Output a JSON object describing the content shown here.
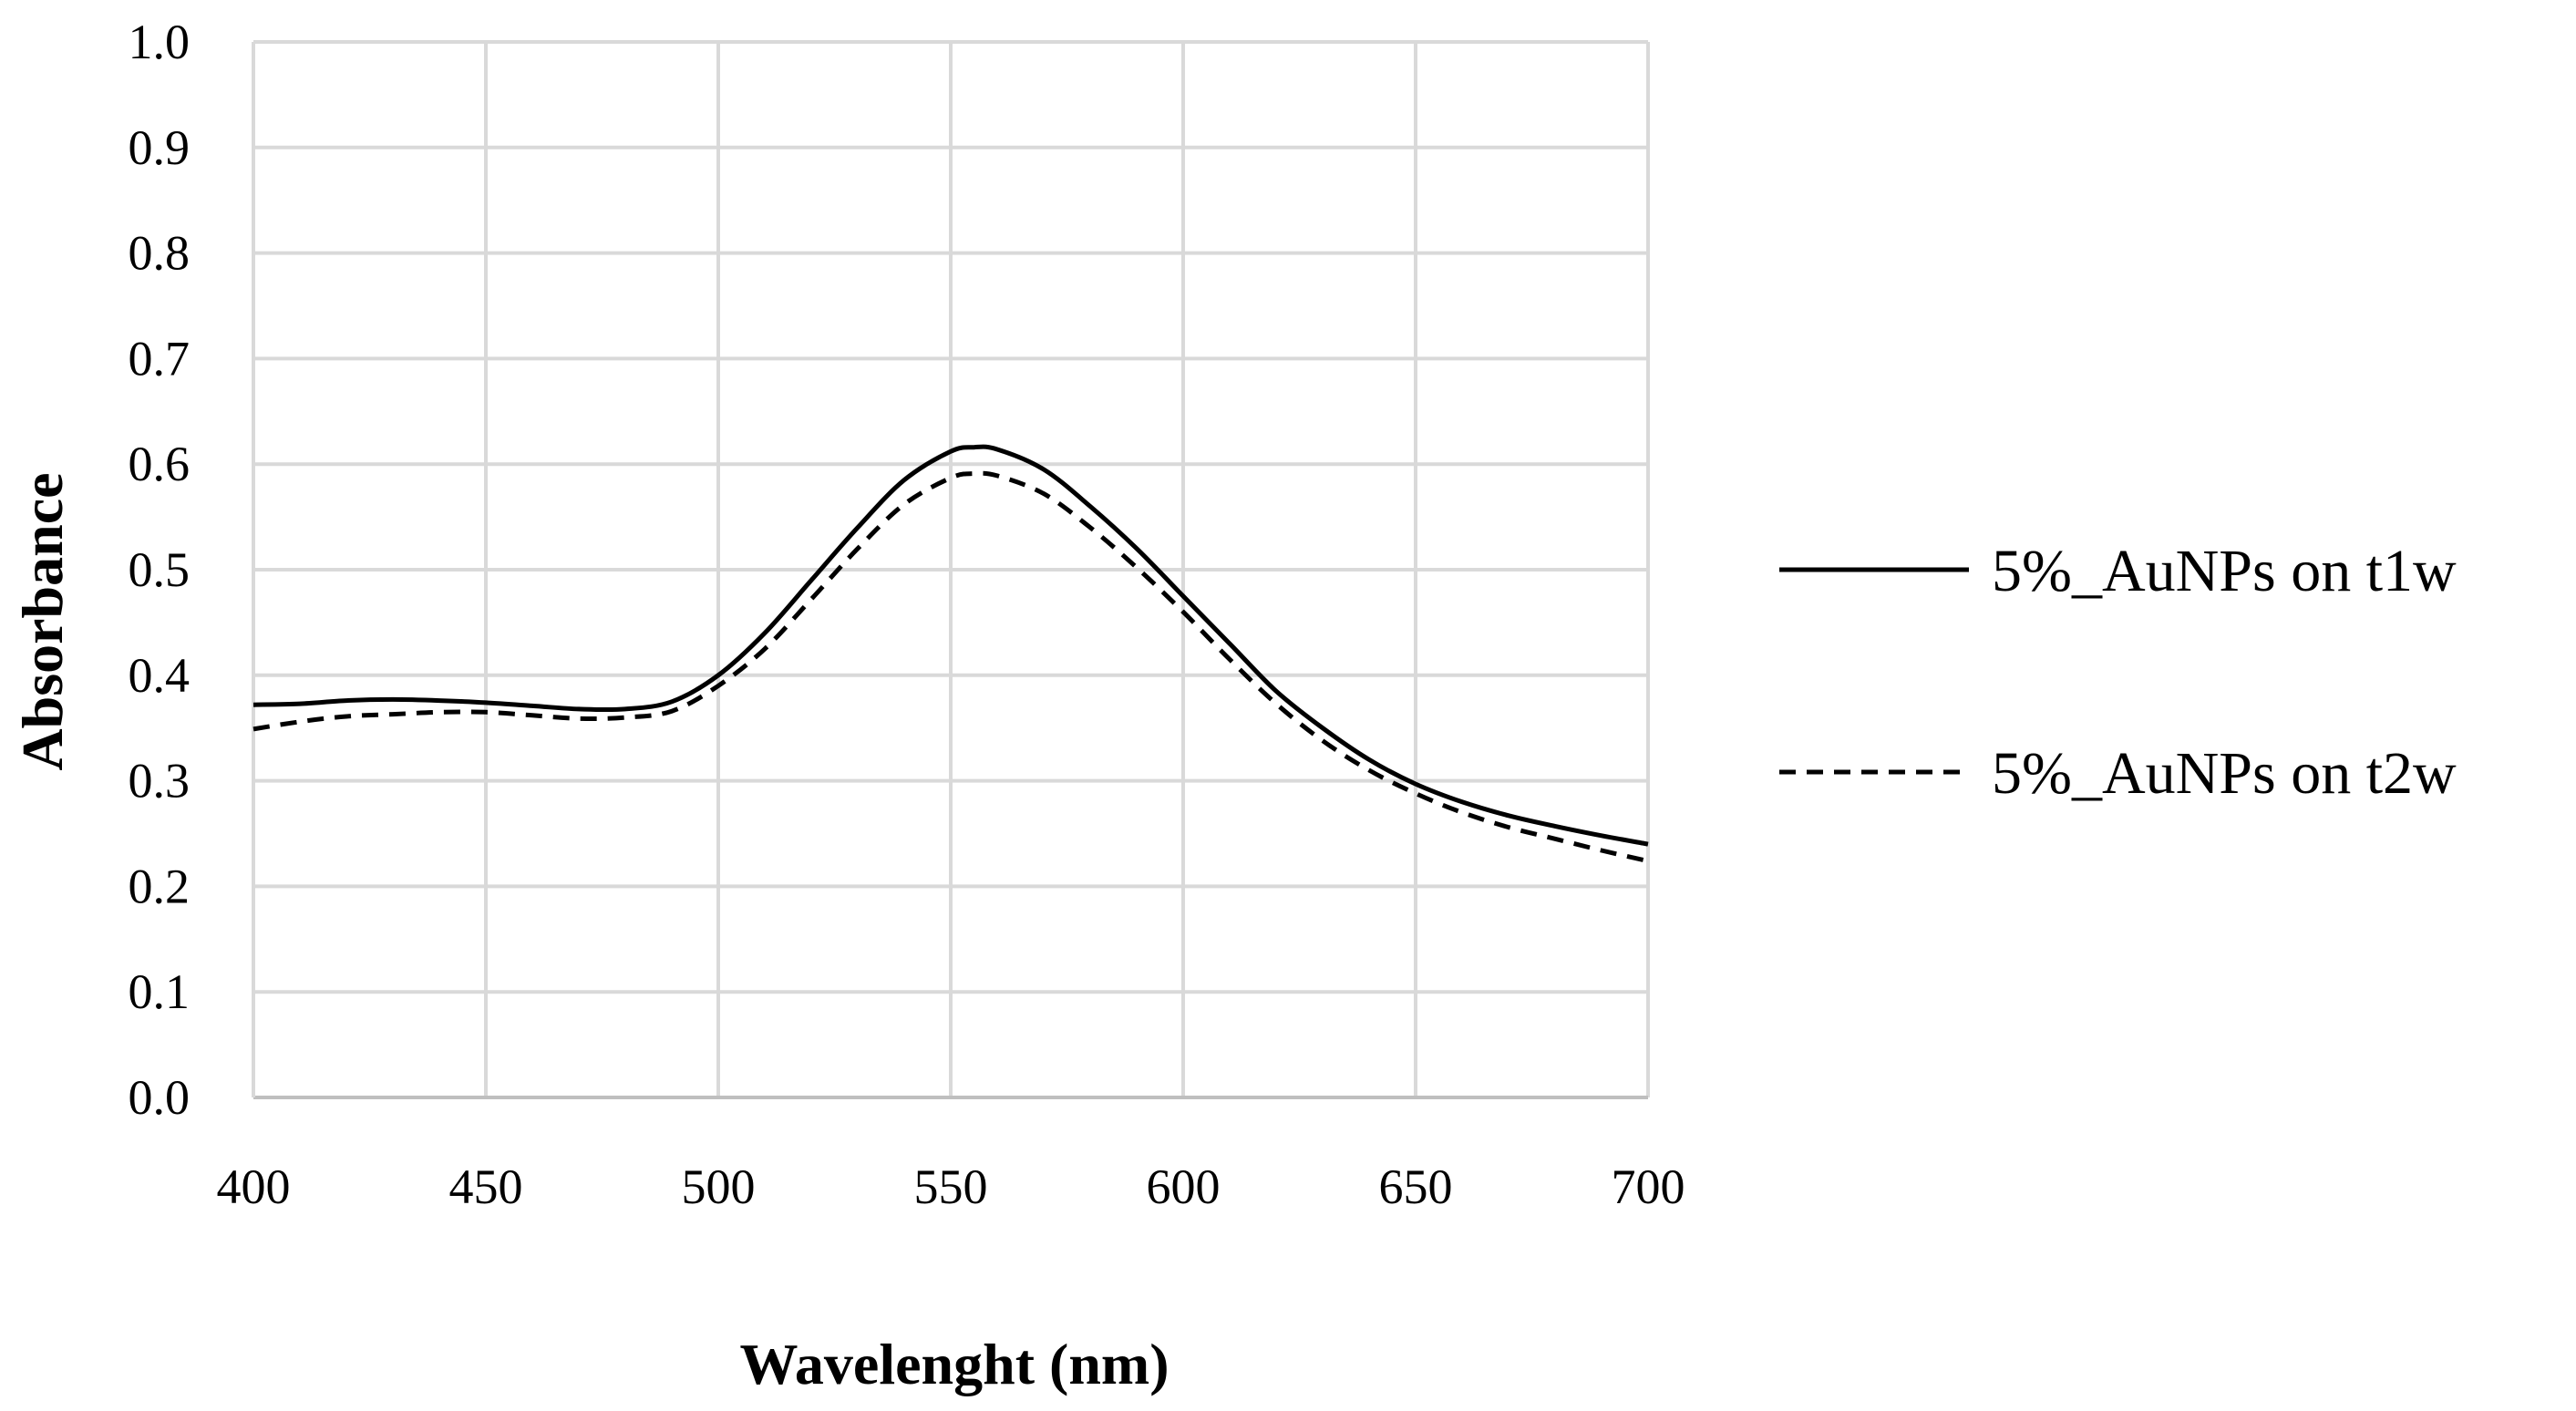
{
  "chart_data": {
    "type": "line",
    "title": "",
    "xlabel": "Wavelenght (nm)",
    "ylabel": "Absorbance",
    "xlim": [
      400,
      700
    ],
    "ylim": [
      0.0,
      1.0
    ],
    "grid": true,
    "legend_position": "right",
    "x_ticks": [
      "400",
      "450",
      "500",
      "550",
      "600",
      "650",
      "700"
    ],
    "y_ticks": [
      "0.0",
      "0.1",
      "0.2",
      "0.3",
      "0.4",
      "0.5",
      "0.6",
      "0.7",
      "0.8",
      "0.9",
      "1.0"
    ],
    "x": [
      400,
      410,
      420,
      430,
      440,
      450,
      460,
      470,
      480,
      490,
      500,
      510,
      520,
      530,
      540,
      550,
      555,
      560,
      570,
      580,
      590,
      600,
      610,
      620,
      630,
      640,
      650,
      660,
      670,
      680,
      690,
      700
    ],
    "series": [
      {
        "name": "5%_AuNPs on t1w",
        "style": "solid",
        "color": "#000000",
        "values": [
          0.372,
          0.373,
          0.376,
          0.377,
          0.376,
          0.374,
          0.371,
          0.368,
          0.368,
          0.375,
          0.4,
          0.44,
          0.49,
          0.54,
          0.585,
          0.612,
          0.616,
          0.614,
          0.595,
          0.56,
          0.52,
          0.475,
          0.43,
          0.385,
          0.35,
          0.32,
          0.297,
          0.28,
          0.267,
          0.257,
          0.248,
          0.24
        ]
      },
      {
        "name": "5%_AuNPs on t2w",
        "style": "dashed",
        "color": "#000000",
        "values": [
          0.349,
          0.356,
          0.361,
          0.363,
          0.365,
          0.365,
          0.362,
          0.359,
          0.36,
          0.366,
          0.39,
          0.425,
          0.472,
          0.52,
          0.562,
          0.587,
          0.591,
          0.589,
          0.572,
          0.54,
          0.502,
          0.46,
          0.415,
          0.373,
          0.338,
          0.31,
          0.288,
          0.27,
          0.256,
          0.245,
          0.234,
          0.224
        ]
      }
    ]
  }
}
